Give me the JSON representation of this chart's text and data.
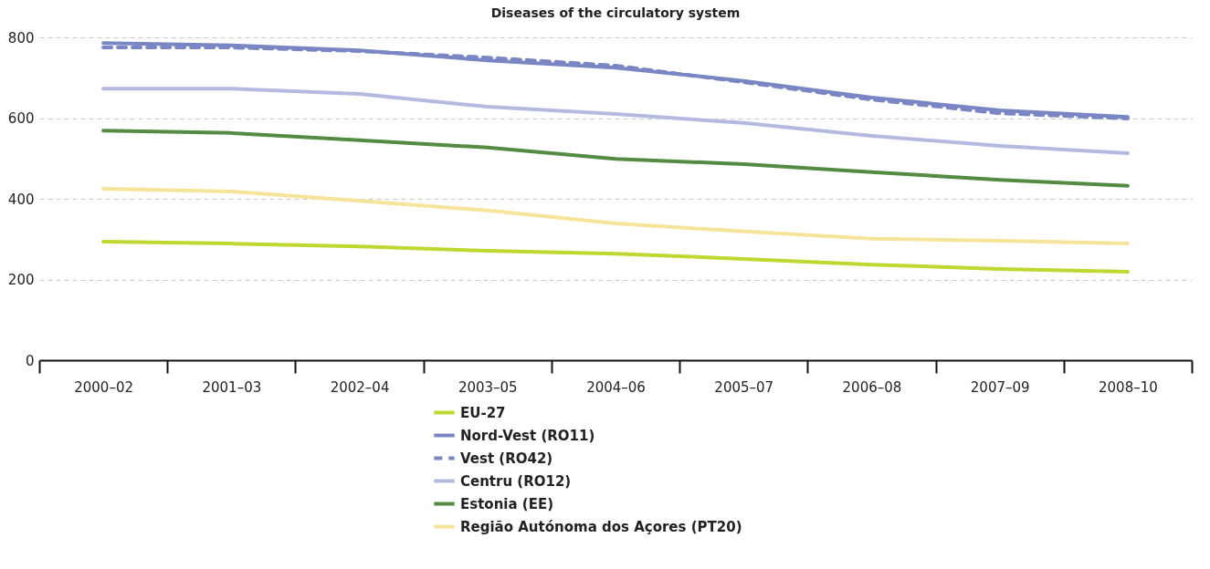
{
  "chart_data": {
    "type": "line",
    "title": "Diseases of the circulatory system",
    "categories": [
      "2000–02",
      "2001–03",
      "2002–04",
      "2003–05",
      "2004–06",
      "2005–07",
      "2006–08",
      "2007–09",
      "2008–10"
    ],
    "ylim": [
      0,
      800
    ],
    "yticks": [
      0,
      200,
      400,
      600,
      800
    ],
    "grid": "y",
    "legend": "bottom",
    "marker": "none",
    "series": [
      {
        "name": "EU-27",
        "color": "#bfd730",
        "values": [
          294,
          289,
          282,
          271,
          264,
          251,
          237,
          226,
          219
        ]
      },
      {
        "name": "Nord-Vest (RO11)",
        "color": "#7986c3",
        "values": [
          786,
          780,
          768,
          743,
          725,
          692,
          651,
          619,
          603
        ]
      },
      {
        "name": "Vest (RO42)",
        "color": "#7986c3",
        "line_style": "dashed",
        "values": [
          775,
          775,
          766,
          750,
          730,
          689,
          646,
          612,
          599
        ]
      },
      {
        "name": "Centru (RO12)",
        "color": "#b4b9e0",
        "values": [
          673,
          673,
          660,
          628,
          610,
          588,
          556,
          531,
          513
        ]
      },
      {
        "name": "Estonia (EE)",
        "color": "#548b43",
        "values": [
          569,
          563,
          545,
          527,
          499,
          486,
          466,
          447,
          432
        ]
      },
      {
        "name": "Região Autónoma dos Açores (PT20)",
        "color": "#f5e49a",
        "values": [
          425,
          418,
          395,
          371,
          339,
          319,
          301,
          296,
          289
        ]
      }
    ]
  }
}
